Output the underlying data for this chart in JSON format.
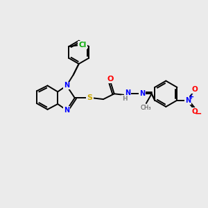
{
  "background_color": "#ebebeb",
  "bond_color": "#000000",
  "atom_colors": {
    "N": "#0000ff",
    "O": "#ff0000",
    "S": "#ccaa00",
    "Cl": "#00aa00",
    "H": "#888888",
    "C": "#000000"
  },
  "figsize": [
    3.0,
    3.0
  ],
  "dpi": 100
}
